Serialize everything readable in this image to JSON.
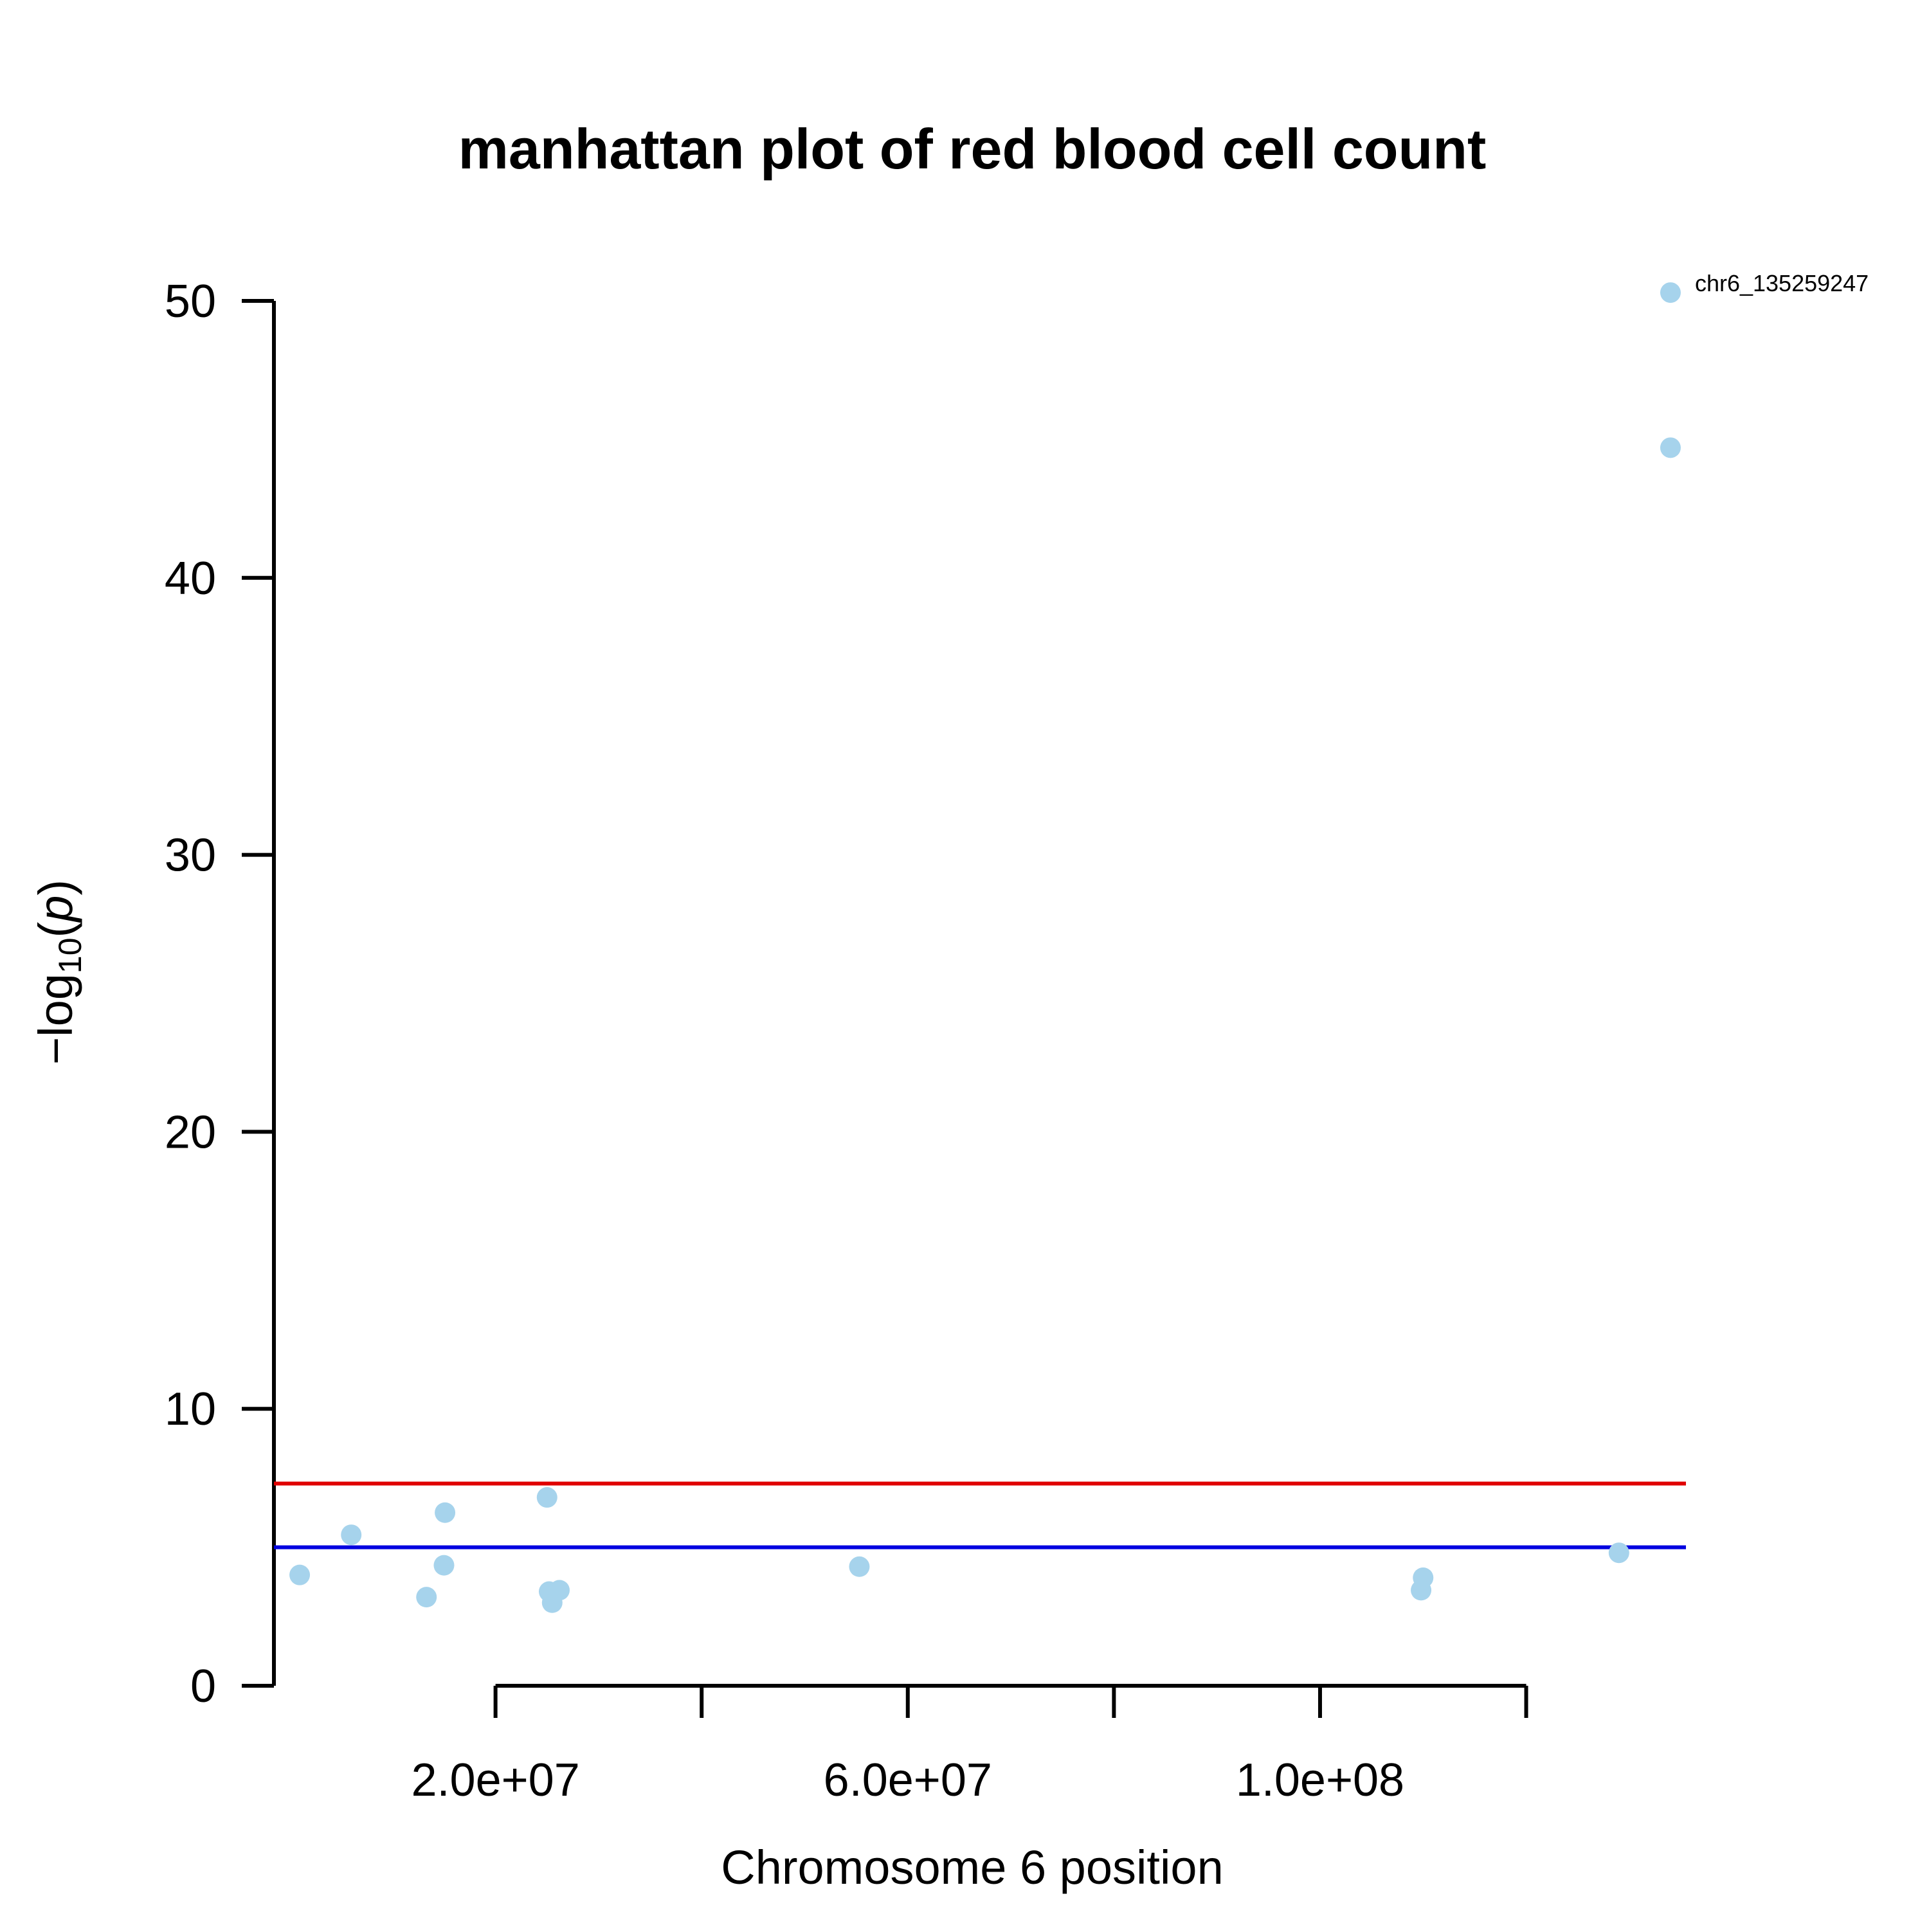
{
  "chart_data": {
    "type": "scatter",
    "title": "manhattan plot of red blood cell count",
    "xlabel": "Chromosome 6 position",
    "ylabel": {
      "prefix": "−log",
      "subscript": "10",
      "open": "(",
      "var": "p",
      "close": ")"
    },
    "xlim": [
      -1500000,
      135500000
    ],
    "ylim": [
      0,
      50
    ],
    "x_ticks": [
      20000000,
      40000000,
      60000000,
      80000000,
      100000000,
      120000000
    ],
    "x_tick_labels": [
      {
        "value": 20000000,
        "label": "2.0e+07"
      },
      {
        "value": 60000000,
        "label": "6.0e+07"
      },
      {
        "value": 100000000,
        "label": "1.0e+08"
      }
    ],
    "y_ticks": [
      0,
      10,
      20,
      30,
      40,
      50
    ],
    "y_tick_labels": [
      "0",
      "10",
      "20",
      "30",
      "40",
      "50"
    ],
    "grid": false,
    "point_color": "#a6d3ec",
    "thresholds": [
      {
        "y": 7.3,
        "color": "#e00000"
      },
      {
        "y": 5.0,
        "color": "#0000e0"
      }
    ],
    "points": [
      {
        "x": 1000000,
        "y": 4.0
      },
      {
        "x": 6000000,
        "y": 5.45
      },
      {
        "x": 13300000,
        "y": 3.2
      },
      {
        "x": 15000000,
        "y": 4.35
      },
      {
        "x": 15100000,
        "y": 6.25
      },
      {
        "x": 25000000,
        "y": 6.8
      },
      {
        "x": 25200000,
        "y": 3.4
      },
      {
        "x": 25500000,
        "y": 3.0
      },
      {
        "x": 26200000,
        "y": 3.45
      },
      {
        "x": 55300000,
        "y": 4.3
      },
      {
        "x": 110000000,
        "y": 3.9
      },
      {
        "x": 109800000,
        "y": 3.45
      },
      {
        "x": 129000000,
        "y": 4.8
      },
      {
        "x": 134000000,
        "y": 44.7
      },
      {
        "x": 134000000,
        "y": 50.3,
        "label": "chr6_135259247"
      }
    ]
  }
}
